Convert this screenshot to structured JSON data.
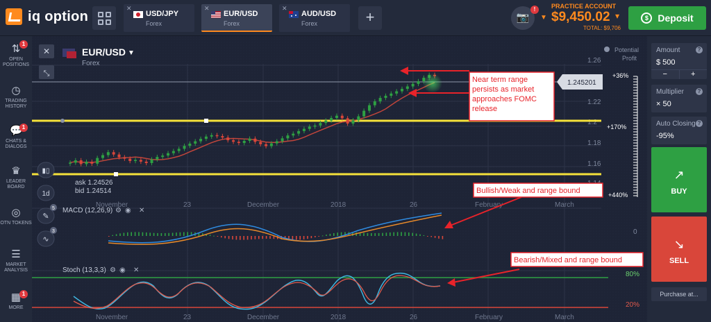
{
  "brand": {
    "name": "iq option"
  },
  "tabs": [
    {
      "pair": "USD/JPY",
      "type": "Forex"
    },
    {
      "pair": "EUR/USD",
      "type": "Forex"
    },
    {
      "pair": "AUD/USD",
      "type": "Forex"
    }
  ],
  "account": {
    "label": "PRACTICE ACCOUNT",
    "balance": "$9,450.02",
    "total": "TOTAL: $9,706",
    "notifications": "!"
  },
  "deposit": {
    "label": "Deposit",
    "icon": "dollar-circle-icon"
  },
  "sidebar": [
    {
      "label": "OPEN POSITIONS",
      "icon": "trades-icon",
      "badge": "1"
    },
    {
      "label": "TRADING HISTORY",
      "icon": "history-icon"
    },
    {
      "label": "CHATS & DIALOGS",
      "icon": "chat-icon",
      "badge": "1"
    },
    {
      "label": "LEADER BOARD",
      "icon": "trophy-icon"
    },
    {
      "label": "OTN TOKENS",
      "icon": "otn-icon"
    },
    {
      "label": "MARKET ANALYSIS",
      "icon": "analysis-icon"
    },
    {
      "label": "MORE",
      "icon": "more-icon",
      "badge": "1"
    }
  ],
  "chart_header": {
    "pair": "EUR/USD",
    "type": "Forex",
    "potential_profit": "Potential Profit"
  },
  "chart_tools": {
    "timeframe": "1d",
    "tool_badges": [
      "5",
      "3"
    ]
  },
  "chart_data": {
    "type": "line",
    "price_axis": [
      "1.26",
      "1.22",
      "1.2",
      "1.18",
      "1.16",
      "1.14"
    ],
    "current_price": "1.245201",
    "ask": "ask 1.24526",
    "bid": "bid 1.24514",
    "profit_labels": [
      "+36%",
      "+170%",
      "+440%"
    ],
    "time_axis": [
      "November",
      "23",
      "December",
      "2018",
      "26",
      "February",
      "March"
    ],
    "macd": {
      "label": "MACD (12,26,9)",
      "zero": "0"
    },
    "stoch": {
      "label": "Stoch (13,3,3)",
      "upper": "80%",
      "lower": "20%"
    },
    "price_series": [
      1.1602,
      1.1625,
      1.1588,
      1.1611,
      1.1592,
      1.1648,
      1.1676,
      1.1705,
      1.1682,
      1.1655,
      1.1641,
      1.1618,
      1.1629,
      1.1612,
      1.1598,
      1.1634,
      1.1658,
      1.1672,
      1.1695,
      1.1716,
      1.1738,
      1.1767,
      1.1789,
      1.1812,
      1.1836,
      1.1858,
      1.1872,
      1.1863,
      1.1849,
      1.1822,
      1.1807,
      1.1795,
      1.1816,
      1.1838,
      1.1806,
      1.1783,
      1.1764,
      1.1791,
      1.1812,
      1.1841,
      1.1869,
      1.1887,
      1.1912,
      1.1934,
      1.1956,
      1.1967,
      1.1992,
      1.2016,
      1.2041,
      1.2063,
      1.2038,
      1.1986,
      1.2018,
      1.2057,
      1.2112,
      1.2166,
      1.2204,
      1.2238,
      1.2259,
      1.2281,
      1.2303,
      1.2327,
      1.2351,
      1.2376,
      1.2402,
      1.2436,
      1.2465,
      1.2452
    ]
  },
  "annotations": [
    {
      "text": "Near term range persists as market approaches FOMC release"
    },
    {
      "text": "Bullish/Weak and range bound"
    },
    {
      "text": "Bearish/Mixed and range bound"
    }
  ],
  "trade_panel": {
    "amount_label": "Amount",
    "amount_value": "$  500",
    "minus": "−",
    "plus": "+",
    "multiplier_label": "Multiplier",
    "multiplier_value": "× 50",
    "autoclose_label": "Auto Closing",
    "autoclose_value": "-95%",
    "buy_label": "BUY",
    "sell_label": "SELL",
    "purchase_label": "Purchase at..."
  },
  "colors": {
    "accent": "#ff8a1e",
    "buy": "#2ea043",
    "sell": "#d9463a",
    "range": "#f5e23a",
    "annotation": "#e8232a"
  }
}
